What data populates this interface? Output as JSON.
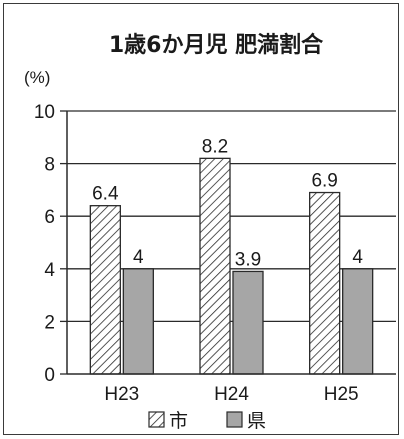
{
  "chart_data": {
    "type": "bar",
    "title": "1歳6か月児 肥満割合",
    "ylabel": "(%)",
    "xlabel": "",
    "categories": [
      "H23",
      "H24",
      "H25"
    ],
    "series": [
      {
        "name": "市",
        "values": [
          6.4,
          8.2,
          6.9
        ],
        "data_labels": [
          "6.4",
          "8.2",
          "6.9"
        ],
        "pattern": "hatched"
      },
      {
        "name": "県",
        "values": [
          4,
          3.9,
          4
        ],
        "data_labels": [
          "4",
          "3.9",
          "4"
        ],
        "color": "#a6a6a6"
      }
    ],
    "ylim": [
      0,
      10
    ],
    "yticks": [
      0,
      2,
      4,
      6,
      8,
      10
    ],
    "grid": true,
    "legend_position": "bottom"
  }
}
